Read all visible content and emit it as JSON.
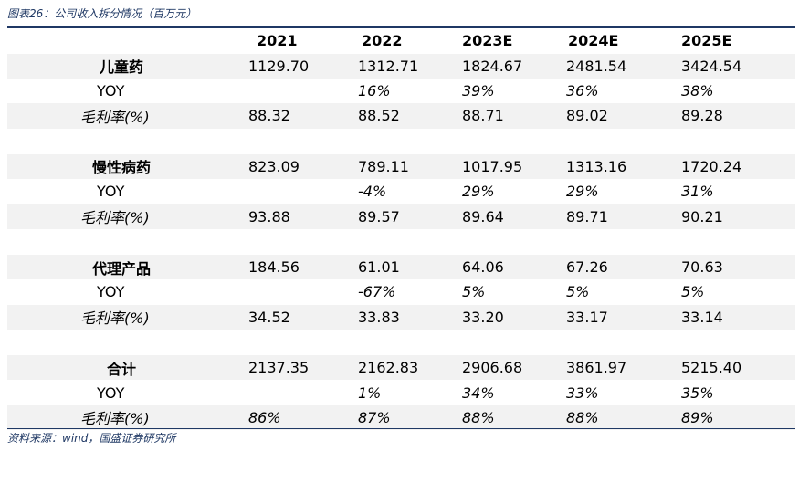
{
  "caption": "图表26：公司收入拆分情况（百万元）",
  "source": "资料来源：wind，国盛证券研究所",
  "columns": [
    "",
    "2021",
    "2022",
    "2023E",
    "2024E",
    "2025E"
  ],
  "groups": [
    {
      "name": "儿童药",
      "revenue": [
        "1129.70",
        "1312.71",
        "1824.67",
        "2481.54",
        "3424.54"
      ],
      "yoy_label": "YOY",
      "yoy": [
        "",
        "16%",
        "39%",
        "36%",
        "38%"
      ],
      "margin_label": "毛利率(%)",
      "margin": [
        "88.32",
        "88.52",
        "88.71",
        "89.02",
        "89.28"
      ]
    },
    {
      "name": "慢性病药",
      "revenue": [
        "823.09",
        "789.11",
        "1017.95",
        "1313.16",
        "1720.24"
      ],
      "yoy_label": "YOY",
      "yoy": [
        "",
        "-4%",
        "29%",
        "29%",
        "31%"
      ],
      "margin_label": "毛利率(%)",
      "margin": [
        "93.88",
        "89.57",
        "89.64",
        "89.71",
        "90.21"
      ]
    },
    {
      "name": "代理产品",
      "revenue": [
        "184.56",
        "61.01",
        "64.06",
        "67.26",
        "70.63"
      ],
      "yoy_label": "YOY",
      "yoy": [
        "",
        "-67%",
        "5%",
        "5%",
        "5%"
      ],
      "margin_label": "毛利率(%)",
      "margin": [
        "34.52",
        "33.83",
        "33.20",
        "33.17",
        "33.14"
      ]
    },
    {
      "name": "合计",
      "revenue": [
        "2137.35",
        "2162.83",
        "2906.68",
        "3861.97",
        "5215.40"
      ],
      "yoy_label": "YOY",
      "yoy": [
        "",
        "1%",
        "34%",
        "33%",
        "35%"
      ],
      "margin_label": "毛利率(%)",
      "margin": [
        "86%",
        "87%",
        "88%",
        "88%",
        "89%"
      ]
    }
  ]
}
